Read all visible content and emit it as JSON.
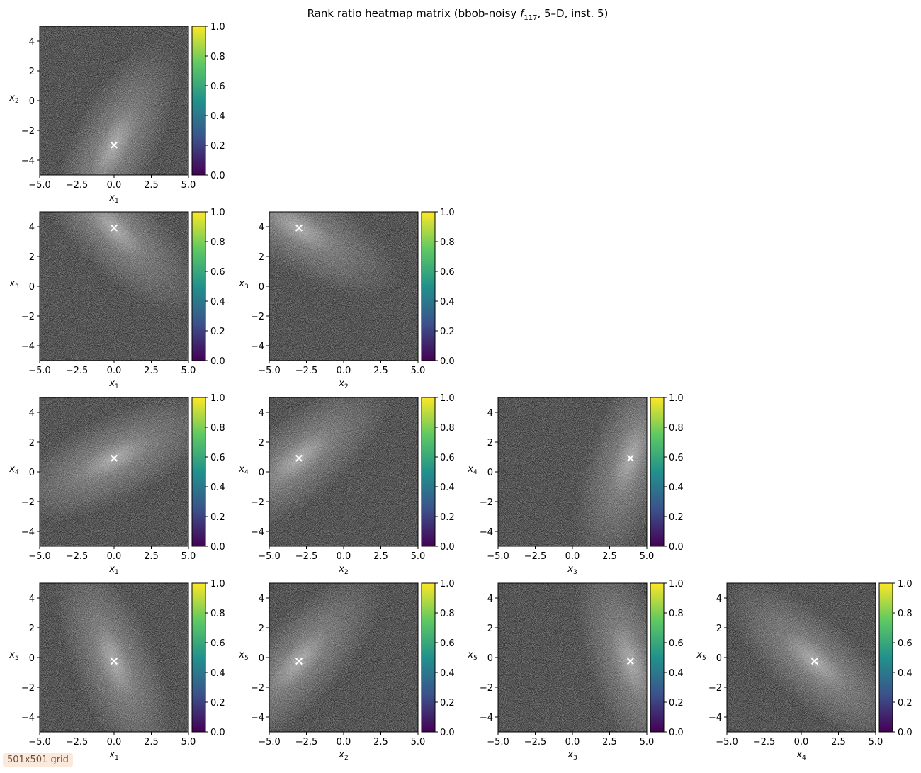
{
  "figure": {
    "title": "Rank ratio heatmap matrix (bbob-noisy f117, 5–D, inst. 5)",
    "title_parts": {
      "pre": "Rank ratio heatmap matrix (bbob-noisy ",
      "f": "f",
      "fsub": "117",
      "post": ", 5–D, inst. 5)"
    },
    "grid_label": "501x501 grid"
  },
  "chart_data": {
    "type": "heatmap",
    "layout": "lower-triangular pair matrix",
    "dimensions": 5,
    "variables": [
      "x1",
      "x2",
      "x3",
      "x4",
      "x5"
    ],
    "variable_labels": [
      {
        "base": "x",
        "sub": "1"
      },
      {
        "base": "x",
        "sub": "2"
      },
      {
        "base": "x",
        "sub": "3"
      },
      {
        "base": "x",
        "sub": "4"
      },
      {
        "base": "x",
        "sub": "5"
      }
    ],
    "axis_range": [
      -5,
      5
    ],
    "x_ticks": [
      "−5.0",
      "−2.5",
      "0.0",
      "2.5",
      "5.0"
    ],
    "x_tick_values": [
      -5,
      -2.5,
      0,
      2.5,
      5
    ],
    "y_ticks": [
      "−4",
      "−2",
      "0",
      "2",
      "4"
    ],
    "y_tick_values": [
      -4,
      -2,
      0,
      2,
      4
    ],
    "colorbar": {
      "colormap": "viridis",
      "range": [
        0,
        1
      ],
      "ticks": [
        "0.0",
        "0.2",
        "0.4",
        "0.6",
        "0.8",
        "1.0"
      ],
      "tick_values": [
        0,
        0.2,
        0.4,
        0.6,
        0.8,
        1.0
      ],
      "colors": [
        "#440154",
        "#3b528b",
        "#21918c",
        "#5ec962",
        "#fde725"
      ]
    },
    "optimum": [
      0.0,
      -3.0,
      3.9,
      0.9,
      -0.25
    ],
    "panels": [
      {
        "row": 0,
        "col": 0,
        "x": 0,
        "y": 1,
        "ridge_slope": 2.0
      },
      {
        "row": 1,
        "col": 0,
        "x": 0,
        "y": 2,
        "ridge_slope": -1.0
      },
      {
        "row": 1,
        "col": 1,
        "x": 1,
        "y": 2,
        "ridge_slope": -0.6
      },
      {
        "row": 2,
        "col": 0,
        "x": 0,
        "y": 3,
        "ridge_slope": 0.5
      },
      {
        "row": 2,
        "col": 1,
        "x": 1,
        "y": 3,
        "ridge_slope": 0.8
      },
      {
        "row": 2,
        "col": 2,
        "x": 2,
        "y": 3,
        "ridge_slope": 3.0
      },
      {
        "row": 3,
        "col": 0,
        "x": 0,
        "y": 4,
        "ridge_slope": -2.5
      },
      {
        "row": 3,
        "col": 1,
        "x": 1,
        "y": 4,
        "ridge_slope": 1.1
      },
      {
        "row": 3,
        "col": 2,
        "x": 2,
        "y": 4,
        "ridge_slope": -3.0
      },
      {
        "row": 3,
        "col": 3,
        "x": 3,
        "y": 4,
        "ridge_slope": -0.9
      }
    ],
    "marker": {
      "symbol": "×",
      "color": "#ffffff"
    }
  }
}
